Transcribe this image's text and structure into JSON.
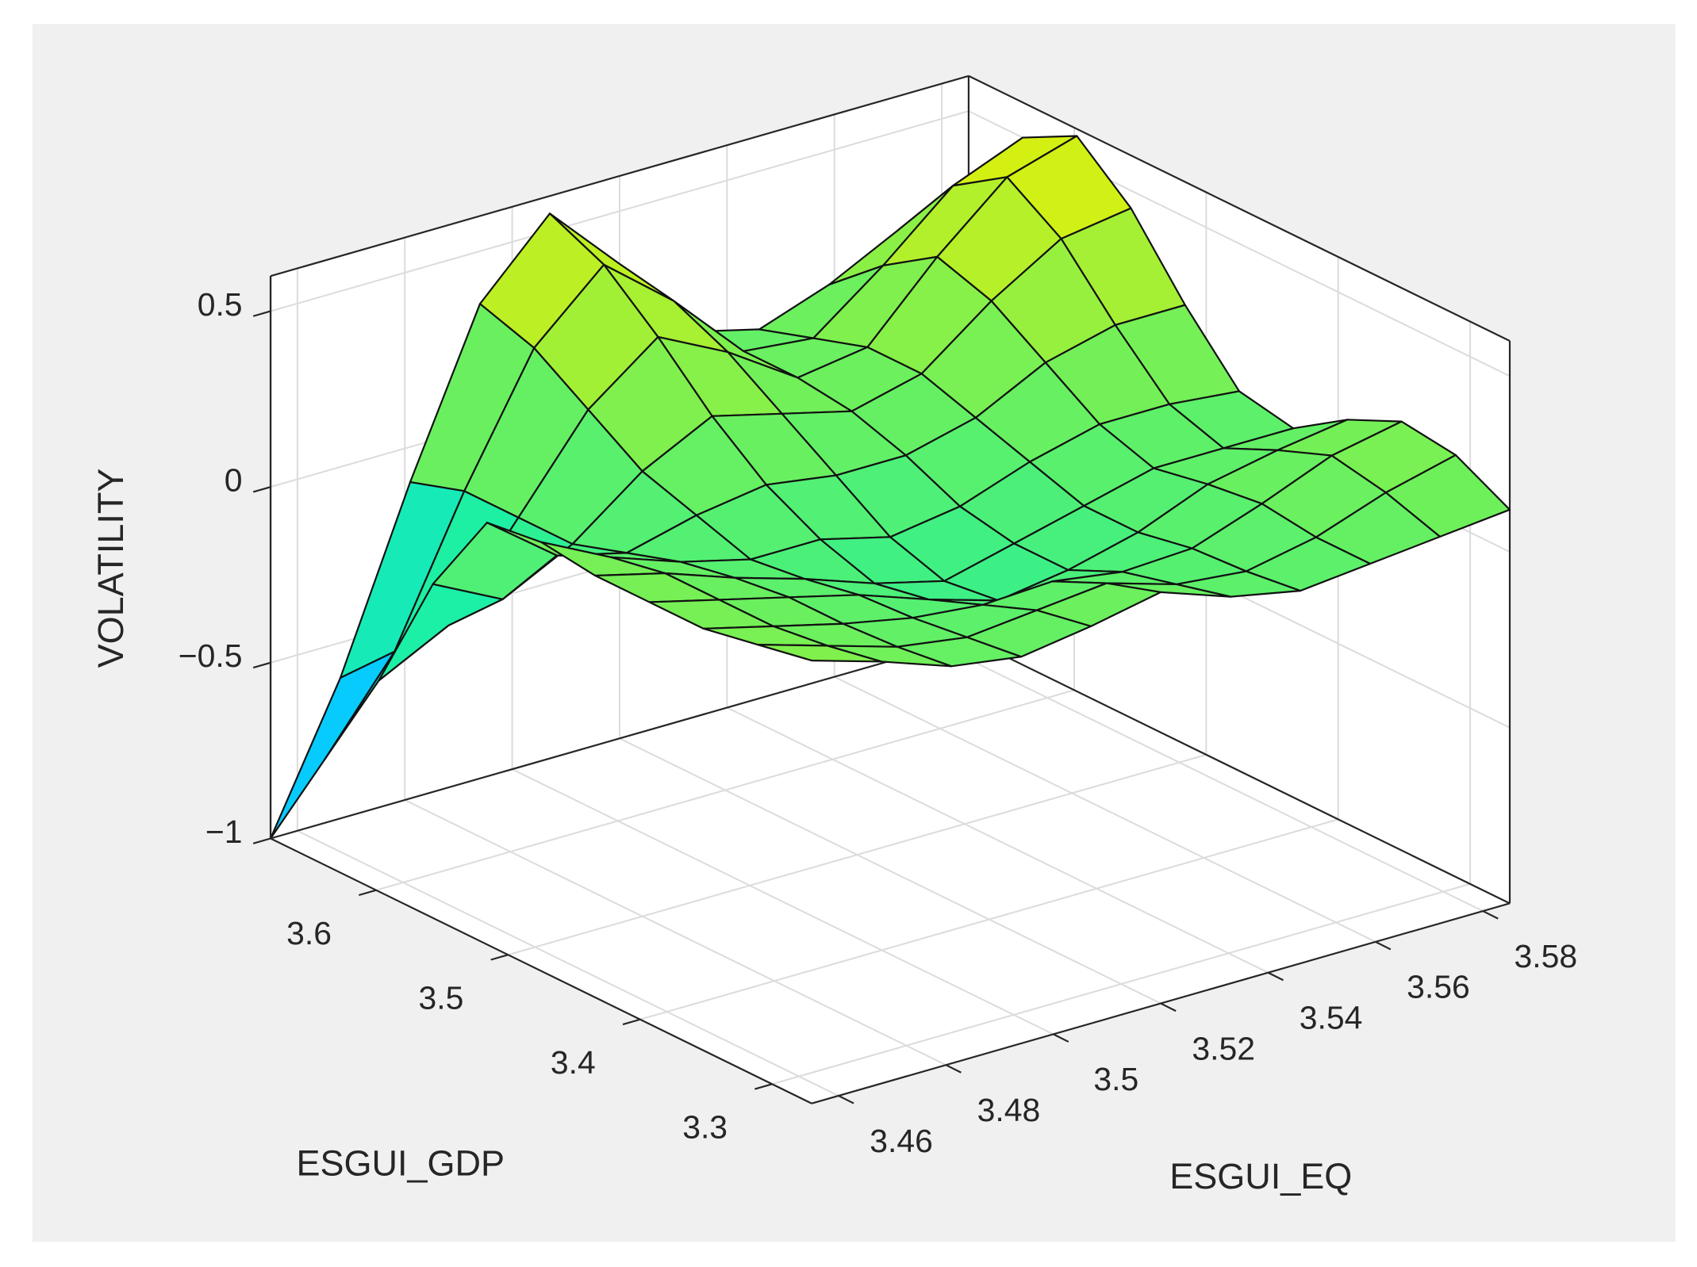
{
  "chart_data": {
    "type": "surface",
    "xlabel": "ESGUI_EQ",
    "ylabel": "ESGUI_GDP",
    "zlabel": "VOLATILITY",
    "x": [
      3.455,
      3.468,
      3.481,
      3.494,
      3.507,
      3.52,
      3.533,
      3.546,
      3.559,
      3.572,
      3.585
    ],
    "y": [
      3.27,
      3.311,
      3.352,
      3.393,
      3.434,
      3.475,
      3.516,
      3.557,
      3.598,
      3.639,
      3.68
    ],
    "z": [
      [
        0.26,
        0.2,
        0.13,
        0.1,
        0.13,
        0.17,
        0.1,
        0.06,
        0.08,
        0.1,
        0.12
      ],
      [
        0.23,
        0.17,
        0.11,
        0.08,
        0.1,
        0.12,
        0.06,
        0.04,
        0.08,
        0.15,
        0.2
      ],
      [
        0.2,
        0.15,
        0.1,
        0.06,
        0.04,
        0.05,
        0.02,
        0.03,
        0.1,
        0.18,
        0.22
      ],
      [
        0.2,
        0.15,
        0.1,
        0.05,
        -0.02,
        -0.08,
        -0.05,
        0,
        0.08,
        0.12,
        0.15
      ],
      [
        0.2,
        0.15,
        0.08,
        0.02,
        -0.05,
        -0.1,
        -0.05,
        0,
        0.05,
        0.05,
        0.05
      ],
      [
        0.22,
        0.12,
        0.05,
        0,
        0,
        -0.05,
        -0.02,
        0.05,
        0.1,
        0.1,
        0.08
      ],
      [
        0.2,
        0.05,
        0,
        0.05,
        0.08,
        0.05,
        0.05,
        0.1,
        0.2,
        0.25,
        0.25
      ],
      [
        -0.05,
        -0.15,
        -0.05,
        0.1,
        0.2,
        0.15,
        0.1,
        0.15,
        0.3,
        0.42,
        0.45
      ],
      [
        -0.4,
        -0.3,
        -0.05,
        0.2,
        0.35,
        0.25,
        0.12,
        0.15,
        0.35,
        0.52,
        0.58
      ],
      [
        -0.7,
        -0.45,
        -0.05,
        0.3,
        0.48,
        0.32,
        0.12,
        0.1,
        0.25,
        0.42,
        0.5
      ],
      [
        -1,
        -0.6,
        -0.1,
        0.35,
        0.55,
        0.35,
        0.1,
        0.05,
        0.12,
        0.22,
        0.3
      ]
    ],
    "xlim": [
      3.455,
      3.585
    ],
    "ylim": [
      3.27,
      3.68
    ],
    "zlim": [
      -1,
      0.6
    ],
    "xticks": [
      3.46,
      3.48,
      3.5,
      3.52,
      3.54,
      3.56,
      3.58
    ],
    "yticks": [
      3.3,
      3.4,
      3.5,
      3.6
    ],
    "zticks": [
      {
        "value": -1,
        "label": "−1"
      },
      {
        "value": -0.5,
        "label": "−0.5"
      },
      0,
      0.5
    ],
    "grid": true,
    "colormap": [
      "#1f8cf8",
      "#00dcff",
      "#1ef0a0",
      "#7cf050",
      "#f0f000"
    ],
    "edge_color": "#111111"
  }
}
